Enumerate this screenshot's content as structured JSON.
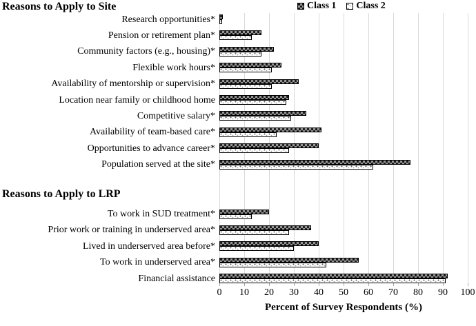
{
  "legend": {
    "class1_label": "Class 1",
    "class2_label": "Class 2"
  },
  "chart_data": {
    "type": "bar",
    "orientation": "horizontal",
    "xlabel": "Percent of Survey Respondents (%)",
    "xlim": [
      0,
      100
    ],
    "xticks": [
      0,
      10,
      20,
      30,
      40,
      50,
      60,
      70,
      80,
      90,
      100
    ],
    "grid": "vertical",
    "legend_position": "top-right",
    "series_names": [
      "Class 1",
      "Class 2"
    ],
    "groups": [
      {
        "title": "Reasons to Apply to Site",
        "categories": [
          "Research opportunities*",
          "Pension or retirement plan*",
          "Community factors (e.g., housing)*",
          "Flexible work hours*",
          "Availability of mentorship or supervision*",
          "Location near family or childhood home",
          "Competitive salary*",
          "Availability of team-based care*",
          "Opportunities to advance career*",
          "Population served at the site*"
        ],
        "series": [
          {
            "name": "Class 1",
            "values": [
              1.5,
              17,
              22,
              25,
              32,
              28,
              35,
              41,
              40,
              77
            ]
          },
          {
            "name": "Class 2",
            "values": [
              1,
              13,
              17,
              21,
              21,
              27,
              29,
              23,
              28,
              62
            ]
          }
        ]
      },
      {
        "title": "Reasons to Apply to LRP",
        "categories": [
          "To work in SUD treatment*",
          "Prior work or training in underserved area*",
          "Lived in underserved area before*",
          "To work in underserved area*",
          "Financial assistance"
        ],
        "series": [
          {
            "name": "Class 1",
            "values": [
              20,
              37,
              40,
              56,
              92
            ]
          },
          {
            "name": "Class 2",
            "values": [
              13,
              28,
              30,
              43,
              91
            ]
          }
        ]
      }
    ],
    "colors": {
      "class1_pattern_base": "#979797",
      "class1_pattern_dot": "#141414",
      "class2_pattern_base": "#fefefe",
      "class2_pattern_dot": "#5f5f5f",
      "bar_border": "#000000",
      "gridline": "#d9d9d9",
      "tick": "#a6a6a6",
      "text": "#000000"
    }
  }
}
